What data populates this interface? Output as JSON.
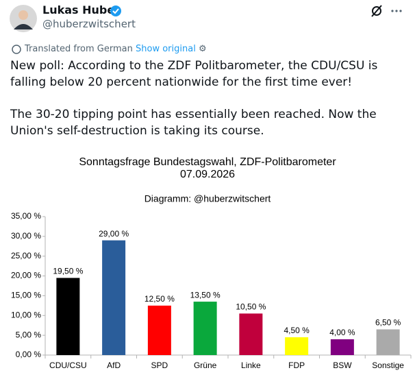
{
  "author": {
    "name": "Lukas Huber",
    "handle": "@huberzwitschert"
  },
  "translation": {
    "label": "Translated from German",
    "link": "Show original"
  },
  "text": [
    "New poll: According to the ZDF Politbarometer, the CDU/CSU is falling below 20 percent nationwide for the first time ever!",
    "The 30-20 tipping point has essentially been reached. Now the Union's self-destruction is taking its course."
  ],
  "chart_data": {
    "type": "bar",
    "title": "Sonntagsfrage Bundestagswahl, ZDF-Politbarometer",
    "subtitle": "07.09.2026",
    "caption": "Diagramm: @huberzwitschert",
    "categories": [
      "CDU/CSU",
      "AfD",
      "SPD",
      "Grüne",
      "Linke",
      "FDP",
      "BSW",
      "Sonstige"
    ],
    "values": [
      19.5,
      29,
      12.5,
      13.5,
      10.5,
      4.5,
      4,
      6.5
    ],
    "value_labels": [
      "19,50 %",
      "29,00 %",
      "12,50 %",
      "13,50 %",
      "10,50 %",
      "4,50 %",
      "4,00 %",
      "6,50 %"
    ],
    "colors": [
      "#000000",
      "#2a5d9a",
      "#ff0000",
      "#0aa83c",
      "#c0003c",
      "#ffff00",
      "#800080",
      "#aaaaaa"
    ],
    "ylim": [
      0,
      35
    ],
    "yticks": [
      {
        "value": 0,
        "label": "0,00 %"
      },
      {
        "value": 5,
        "label": "5,00 %"
      },
      {
        "value": 10,
        "label": "10,00 %"
      },
      {
        "value": 15,
        "label": "15,00 %"
      },
      {
        "value": 20,
        "label": "20,00 %"
      },
      {
        "value": 25,
        "label": "25,00 %"
      },
      {
        "value": 30,
        "label": "30,00 %"
      },
      {
        "value": 35,
        "label": "35,00 %"
      }
    ],
    "grid": false
  }
}
